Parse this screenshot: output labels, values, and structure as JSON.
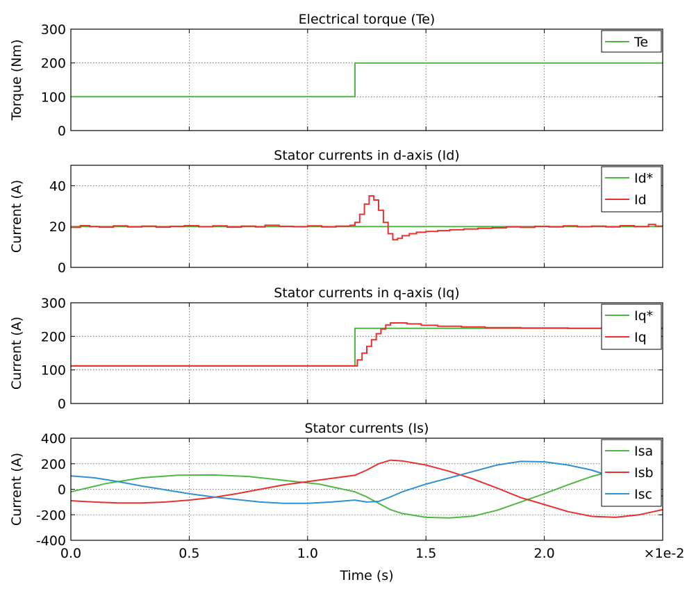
{
  "x_axis": {
    "label": "Time (s)",
    "scale_label": "×1e-2",
    "ticks": [
      "0.0",
      "0.5",
      "1.0",
      "1.5",
      "2.0"
    ]
  },
  "colors": {
    "green": "#4cb840",
    "red": "#e8302c",
    "blue": "#2f8fd0"
  },
  "chart_data": [
    {
      "type": "line",
      "title": "Electrical torque (Te)",
      "ylabel": "Torque (Nm)",
      "xlabel": "",
      "xlim": [
        0,
        2.5
      ],
      "ylim": [
        0,
        300
      ],
      "yticks": [
        0,
        100,
        200,
        300
      ],
      "grid": true,
      "legend_position": "top-right",
      "series": [
        {
          "name": "Te",
          "color": "green",
          "step": true,
          "points": [
            [
              0,
              100
            ],
            [
              1.2,
              100
            ],
            [
              1.2,
              200
            ],
            [
              2.5,
              200
            ]
          ]
        }
      ]
    },
    {
      "type": "line",
      "title": "Stator currents in d-axis (Id)",
      "ylabel": "Current (A)",
      "xlabel": "",
      "xlim": [
        0,
        2.5
      ],
      "ylim": [
        0,
        50
      ],
      "yticks": [
        0,
        20,
        40
      ],
      "grid": true,
      "legend_position": "top-right",
      "series": [
        {
          "name": "Id*",
          "color": "green",
          "step": true,
          "points": [
            [
              0,
              20
            ],
            [
              2.5,
              20
            ]
          ]
        },
        {
          "name": "Id",
          "color": "red",
          "step": true,
          "points": [
            [
              0,
              19.6
            ],
            [
              0.04,
              20.4
            ],
            [
              0.08,
              20
            ],
            [
              0.12,
              19.7
            ],
            [
              0.18,
              20.3
            ],
            [
              0.24,
              19.8
            ],
            [
              0.3,
              20.2
            ],
            [
              0.36,
              19.7
            ],
            [
              0.42,
              20.1
            ],
            [
              0.48,
              20.4
            ],
            [
              0.54,
              19.9
            ],
            [
              0.6,
              20.3
            ],
            [
              0.66,
              19.7
            ],
            [
              0.72,
              20.2
            ],
            [
              0.78,
              19.8
            ],
            [
              0.82,
              20.6
            ],
            [
              0.88,
              20.1
            ],
            [
              0.94,
              19.9
            ],
            [
              1.0,
              20.3
            ],
            [
              1.06,
              19.8
            ],
            [
              1.12,
              20.2
            ],
            [
              1.18,
              20.6
            ],
            [
              1.2,
              22
            ],
            [
              1.22,
              26
            ],
            [
              1.24,
              31
            ],
            [
              1.26,
              35
            ],
            [
              1.28,
              33
            ],
            [
              1.3,
              28
            ],
            [
              1.32,
              22
            ],
            [
              1.34,
              16.5
            ],
            [
              1.36,
              13.5
            ],
            [
              1.38,
              14.2
            ],
            [
              1.4,
              15.5
            ],
            [
              1.43,
              16.5
            ],
            [
              1.46,
              17.2
            ],
            [
              1.5,
              17.6
            ],
            [
              1.55,
              18
            ],
            [
              1.6,
              18.4
            ],
            [
              1.66,
              18.8
            ],
            [
              1.72,
              19.1
            ],
            [
              1.78,
              19.4
            ],
            [
              1.84,
              19.8
            ],
            [
              1.9,
              19.6
            ],
            [
              1.96,
              20.1
            ],
            [
              2.02,
              19.8
            ],
            [
              2.08,
              20.3
            ],
            [
              2.14,
              19.9
            ],
            [
              2.2,
              20.2
            ],
            [
              2.26,
              19.8
            ],
            [
              2.32,
              20.4
            ],
            [
              2.38,
              20
            ],
            [
              2.44,
              21
            ],
            [
              2.47,
              20.2
            ],
            [
              2.5,
              20.5
            ]
          ]
        }
      ]
    },
    {
      "type": "line",
      "title": "Stator currents in q-axis (Iq)",
      "ylabel": "Current (A)",
      "xlabel": "",
      "xlim": [
        0,
        2.5
      ],
      "ylim": [
        0,
        300
      ],
      "yticks": [
        0,
        100,
        200,
        300
      ],
      "grid": true,
      "legend_position": "top-right",
      "series": [
        {
          "name": "Iq*",
          "color": "green",
          "step": true,
          "points": [
            [
              0,
              112
            ],
            [
              1.2,
              112
            ],
            [
              1.2,
              224
            ],
            [
              2.5,
              224
            ]
          ]
        },
        {
          "name": "Iq",
          "color": "red",
          "step": true,
          "points": [
            [
              0,
              112
            ],
            [
              1.2,
              112
            ],
            [
              1.21,
              130
            ],
            [
              1.23,
              150
            ],
            [
              1.25,
              170
            ],
            [
              1.27,
              190
            ],
            [
              1.29,
              208
            ],
            [
              1.31,
              222
            ],
            [
              1.33,
              234
            ],
            [
              1.35,
              240
            ],
            [
              1.38,
              240
            ],
            [
              1.42,
              237
            ],
            [
              1.48,
              233
            ],
            [
              1.55,
              230
            ],
            [
              1.65,
              228
            ],
            [
              1.75,
              226
            ],
            [
              1.9,
              225
            ],
            [
              2.1,
              224
            ],
            [
              2.5,
              224
            ]
          ]
        }
      ]
    },
    {
      "type": "line",
      "title": "Stator currents (Is)",
      "ylabel": "Current (A)",
      "xlabel": "Time (s)",
      "xlim": [
        0,
        2.5
      ],
      "ylim": [
        -400,
        400
      ],
      "yticks": [
        -400,
        -200,
        0,
        200,
        400
      ],
      "grid": true,
      "legend_position": "top-right",
      "series": [
        {
          "name": "Isa",
          "color": "green",
          "step": false,
          "points": [
            [
              0,
              -20
            ],
            [
              0.15,
              45
            ],
            [
              0.3,
              90
            ],
            [
              0.45,
              110
            ],
            [
              0.6,
              112
            ],
            [
              0.75,
              100
            ],
            [
              0.9,
              70
            ],
            [
              1.05,
              40
            ],
            [
              1.2,
              -20
            ],
            [
              1.25,
              -60
            ],
            [
              1.3,
              -110
            ],
            [
              1.35,
              -160
            ],
            [
              1.4,
              -190
            ],
            [
              1.5,
              -220
            ],
            [
              1.6,
              -225
            ],
            [
              1.7,
              -210
            ],
            [
              1.8,
              -165
            ],
            [
              1.9,
              -100
            ],
            [
              2.0,
              -35
            ],
            [
              2.1,
              35
            ],
            [
              2.2,
              100
            ],
            [
              2.3,
              150
            ],
            [
              2.4,
              190
            ],
            [
              2.5,
              215
            ]
          ]
        },
        {
          "name": "Isb",
          "color": "red",
          "step": false,
          "points": [
            [
              0,
              -90
            ],
            [
              0.1,
              -100
            ],
            [
              0.2,
              -108
            ],
            [
              0.3,
              -108
            ],
            [
              0.4,
              -100
            ],
            [
              0.5,
              -85
            ],
            [
              0.6,
              -65
            ],
            [
              0.7,
              -35
            ],
            [
              0.8,
              0
            ],
            [
              0.9,
              35
            ],
            [
              1.0,
              60
            ],
            [
              1.1,
              85
            ],
            [
              1.2,
              110
            ],
            [
              1.25,
              150
            ],
            [
              1.3,
              200
            ],
            [
              1.35,
              228
            ],
            [
              1.4,
              222
            ],
            [
              1.5,
              190
            ],
            [
              1.6,
              140
            ],
            [
              1.7,
              80
            ],
            [
              1.8,
              10
            ],
            [
              1.9,
              -65
            ],
            [
              2.0,
              -120
            ],
            [
              2.1,
              -175
            ],
            [
              2.2,
              -212
            ],
            [
              2.3,
              -220
            ],
            [
              2.4,
              -200
            ],
            [
              2.5,
              -160
            ]
          ]
        },
        {
          "name": "Isc",
          "color": "blue",
          "step": false,
          "points": [
            [
              0,
              105
            ],
            [
              0.1,
              90
            ],
            [
              0.2,
              60
            ],
            [
              0.3,
              25
            ],
            [
              0.4,
              -5
            ],
            [
              0.5,
              -35
            ],
            [
              0.6,
              -60
            ],
            [
              0.7,
              -80
            ],
            [
              0.8,
              -100
            ],
            [
              0.9,
              -110
            ],
            [
              1.0,
              -110
            ],
            [
              1.1,
              -100
            ],
            [
              1.2,
              -85
            ],
            [
              1.25,
              -100
            ],
            [
              1.3,
              -95
            ],
            [
              1.35,
              -60
            ],
            [
              1.4,
              -20
            ],
            [
              1.5,
              40
            ],
            [
              1.6,
              90
            ],
            [
              1.7,
              140
            ],
            [
              1.8,
              190
            ],
            [
              1.9,
              218
            ],
            [
              2.0,
              215
            ],
            [
              2.1,
              190
            ],
            [
              2.2,
              150
            ],
            [
              2.3,
              90
            ],
            [
              2.4,
              20
            ],
            [
              2.5,
              -55
            ]
          ]
        }
      ]
    }
  ]
}
